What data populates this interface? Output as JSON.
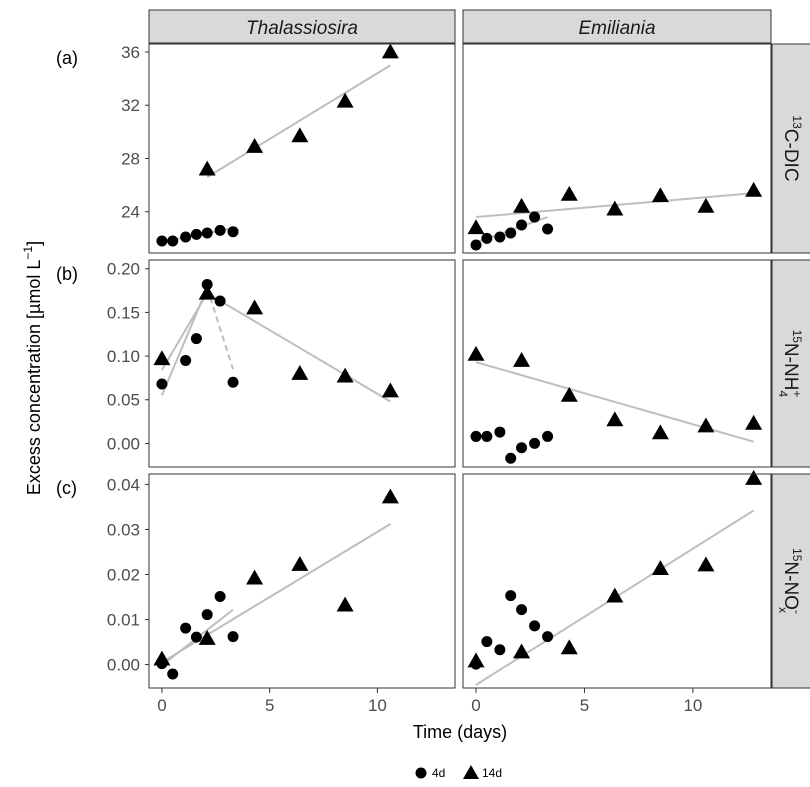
{
  "chart_data": {
    "type": "scatter",
    "columns": [
      "Thalassiosira",
      "Emiliania"
    ],
    "rows": [
      {
        "tag": "(a)",
        "label_sup": "13",
        "label_main": "C-DIC",
        "label_sub": "",
        "label_post_sup": "",
        "ylim": [
          20.9,
          36.6
        ],
        "ticks": [
          24,
          28,
          32,
          36
        ],
        "tick_labels": [
          "24",
          "28",
          "32",
          "36"
        ]
      },
      {
        "tag": "(b)",
        "label_sup": "15",
        "label_main": "N-NH",
        "label_sub": "4",
        "label_post_sup": "+",
        "ylim": [
          -0.027,
          0.21
        ],
        "ticks": [
          0,
          0.05,
          0.1,
          0.15,
          0.2
        ],
        "tick_labels": [
          "0.00",
          "0.05",
          "0.10",
          "0.15",
          "0.20"
        ]
      },
      {
        "tag": "(c)",
        "label_sup": "15",
        "label_main": "N-NO",
        "label_sub": "x",
        "label_post_sup": "-",
        "ylim": [
          -0.0052,
          0.0423
        ],
        "ticks": [
          0,
          0.01,
          0.02,
          0.03,
          0.04
        ],
        "tick_labels": [
          "0.00",
          "0.01",
          "0.02",
          "0.03",
          "0.04"
        ]
      }
    ],
    "xlim": [
      -0.6,
      13.6
    ],
    "xticks": [
      0,
      5,
      10
    ],
    "xtick_labels": [
      "0",
      "5",
      "10"
    ],
    "xlabel": "Time (days)",
    "ylabel": "Excess concentration [µmol L",
    "ylabel_sup": "−1",
    "ylabel_close": "]",
    "legend": {
      "position": "bottom",
      "entries": [
        {
          "name": "4d",
          "shape": "circle"
        },
        {
          "name": "14d",
          "shape": "triangle"
        }
      ]
    },
    "grid": false,
    "colors": {
      "points": "#000000",
      "fit": "#bebebe",
      "strip": "#d9d9d9",
      "frame": "#333333"
    },
    "panels": [
      {
        "row": 0,
        "col": 0,
        "series": [
          {
            "name": "4d",
            "points": [
              [
                0,
                21.8
              ],
              [
                0.5,
                21.8
              ],
              [
                1.1,
                22.1
              ],
              [
                1.6,
                22.3
              ],
              [
                2.1,
                22.4
              ],
              [
                2.7,
                22.6
              ],
              [
                3.3,
                22.5
              ]
            ]
          },
          {
            "name": "14d",
            "points": [
              [
                2.1,
                27.2
              ],
              [
                4.3,
                28.9
              ],
              [
                6.4,
                29.7
              ],
              [
                8.5,
                32.3
              ],
              [
                10.6,
                36.0
              ]
            ]
          }
        ],
        "fits": [
          {
            "x": [
              0,
              3.3
            ],
            "y": [
              21.75,
              22.75
            ],
            "dash": false
          },
          {
            "x": [
              2.1,
              10.6
            ],
            "y": [
              26.6,
              35.0
            ],
            "dash": false
          }
        ]
      },
      {
        "row": 0,
        "col": 1,
        "series": [
          {
            "name": "4d",
            "points": [
              [
                0,
                21.5
              ],
              [
                0.5,
                22.0
              ],
              [
                1.1,
                22.1
              ],
              [
                1.6,
                22.4
              ],
              [
                2.1,
                23.0
              ],
              [
                2.7,
                23.6
              ],
              [
                3.3,
                22.7
              ]
            ]
          },
          {
            "name": "14d",
            "points": [
              [
                0,
                22.8
              ],
              [
                2.1,
                24.4
              ],
              [
                4.3,
                25.3
              ],
              [
                6.4,
                24.2
              ],
              [
                8.5,
                25.2
              ],
              [
                10.6,
                24.4
              ],
              [
                12.8,
                25.6
              ]
            ]
          }
        ],
        "fits": [
          {
            "x": [
              0,
              3.3
            ],
            "y": [
              21.7,
              23.6
            ],
            "dash": false
          },
          {
            "x": [
              0,
              12.8
            ],
            "y": [
              23.6,
              25.4
            ],
            "dash": false
          }
        ]
      },
      {
        "row": 1,
        "col": 0,
        "series": [
          {
            "name": "4d",
            "points": [
              [
                0,
                0.068
              ],
              [
                1.1,
                0.095
              ],
              [
                1.6,
                0.12
              ],
              [
                2.1,
                0.182
              ],
              [
                2.7,
                0.163
              ],
              [
                3.3,
                0.07
              ]
            ]
          },
          {
            "name": "14d",
            "points": [
              [
                0,
                0.097
              ],
              [
                2.1,
                0.172
              ],
              [
                4.3,
                0.155
              ],
              [
                6.4,
                0.08
              ],
              [
                8.5,
                0.077
              ],
              [
                10.6,
                0.06
              ]
            ]
          }
        ],
        "fits": [
          {
            "x": [
              0,
              2.1
            ],
            "y": [
              0.055,
              0.178
            ],
            "dash": false
          },
          {
            "x": [
              2.1,
              3.3
            ],
            "y": [
              0.178,
              0.085
            ],
            "dash": true
          },
          {
            "x": [
              0,
              2.1
            ],
            "y": [
              0.084,
              0.172
            ],
            "dash": false
          },
          {
            "x": [
              2.1,
              10.6
            ],
            "y": [
              0.172,
              0.048
            ],
            "dash": false
          }
        ]
      },
      {
        "row": 1,
        "col": 1,
        "series": [
          {
            "name": "4d",
            "points": [
              [
                0,
                0.008
              ],
              [
                0.5,
                0.008
              ],
              [
                1.1,
                0.013
              ],
              [
                1.6,
                -0.017
              ],
              [
                2.1,
                -0.005
              ],
              [
                2.7,
                0.0
              ],
              [
                3.3,
                0.008
              ]
            ]
          },
          {
            "name": "14d",
            "points": [
              [
                0,
                0.102
              ],
              [
                2.1,
                0.095
              ],
              [
                4.3,
                0.055
              ],
              [
                6.4,
                0.027
              ],
              [
                8.5,
                0.012
              ],
              [
                10.6,
                0.02
              ],
              [
                12.8,
                0.023
              ]
            ]
          }
        ],
        "fits": [
          {
            "x": [
              0,
              12.8
            ],
            "y": [
              0.093,
              0.002
            ],
            "dash": false
          }
        ]
      },
      {
        "row": 2,
        "col": 0,
        "series": [
          {
            "name": "4d",
            "points": [
              [
                0,
                0.0002
              ],
              [
                0.5,
                -0.0021
              ],
              [
                1.1,
                0.0081
              ],
              [
                1.6,
                0.0061
              ],
              [
                2.1,
                0.0111
              ],
              [
                2.7,
                0.0151
              ],
              [
                3.3,
                0.0062
              ]
            ]
          },
          {
            "name": "14d",
            "points": [
              [
                0,
                0.0012
              ],
              [
                2.1,
                0.0058
              ],
              [
                4.3,
                0.0192
              ],
              [
                6.4,
                0.0222
              ],
              [
                8.5,
                0.0132
              ],
              [
                10.6,
                0.0372
              ]
            ]
          }
        ],
        "fits": [
          {
            "x": [
              0,
              3.3
            ],
            "y": [
              -0.0002,
              0.0122
            ],
            "dash": false
          },
          {
            "x": [
              0,
              10.6
            ],
            "y": [
              0.0005,
              0.0312
            ],
            "dash": false
          }
        ]
      },
      {
        "row": 2,
        "col": 1,
        "series": [
          {
            "name": "4d",
            "points": [
              [
                0,
                0.0001
              ],
              [
                0.5,
                0.0051
              ],
              [
                1.1,
                0.0033
              ],
              [
                1.6,
                0.0153
              ],
              [
                2.1,
                0.0122
              ],
              [
                2.7,
                0.0086
              ],
              [
                3.3,
                0.0062
              ]
            ]
          },
          {
            "name": "14d",
            "points": [
              [
                0,
                0.0008
              ],
              [
                2.1,
                0.0028
              ],
              [
                4.3,
                0.0037
              ],
              [
                6.4,
                0.0152
              ],
              [
                8.5,
                0.0213
              ],
              [
                10.6,
                0.0221
              ],
              [
                12.8,
                0.0413
              ]
            ]
          }
        ],
        "fits": [
          {
            "x": [
              0,
              12.8
            ],
            "y": [
              -0.0045,
              0.0342
            ],
            "dash": false
          }
        ]
      }
    ]
  }
}
